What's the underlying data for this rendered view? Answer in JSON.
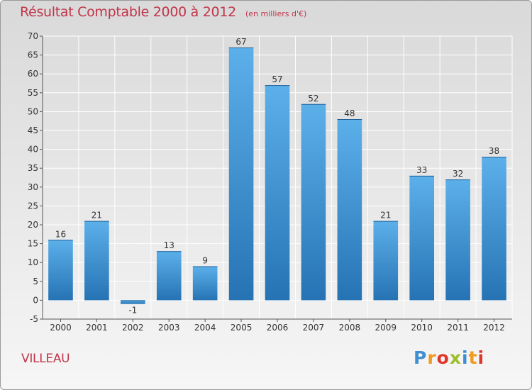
{
  "title": "Résultat Comptable 2000 à 2012",
  "unit": "(en milliers d'€)",
  "commune": "VILLEAU",
  "logo": {
    "p": "P",
    "r": "r",
    "o": "o",
    "x": "x",
    "i": "i",
    "t": "t",
    "i2": "i"
  },
  "colors": {
    "bar_top": "#5cb0ea",
    "bar_bottom": "#2673b4",
    "title": "#c0354a",
    "grid": "#ffffff"
  },
  "chart_data": {
    "type": "bar",
    "title": "Résultat Comptable 2000 à 2012",
    "xlabel": "",
    "ylabel": "",
    "categories": [
      "2000",
      "2001",
      "2002",
      "2003",
      "2004",
      "2005",
      "2006",
      "2007",
      "2008",
      "2009",
      "2010",
      "2011",
      "2012"
    ],
    "values": [
      16,
      21,
      -1,
      13,
      9,
      67,
      57,
      52,
      48,
      21,
      33,
      32,
      38
    ],
    "value_labels": [
      "16",
      "21",
      "-1",
      "13",
      "9",
      "67",
      "57",
      "52",
      "48",
      "21",
      "33",
      "32",
      "38"
    ],
    "ylim": [
      -5,
      70
    ],
    "yticks": [
      -5,
      0,
      5,
      10,
      15,
      20,
      25,
      30,
      35,
      40,
      45,
      50,
      55,
      60,
      65,
      70
    ],
    "grid": true
  }
}
